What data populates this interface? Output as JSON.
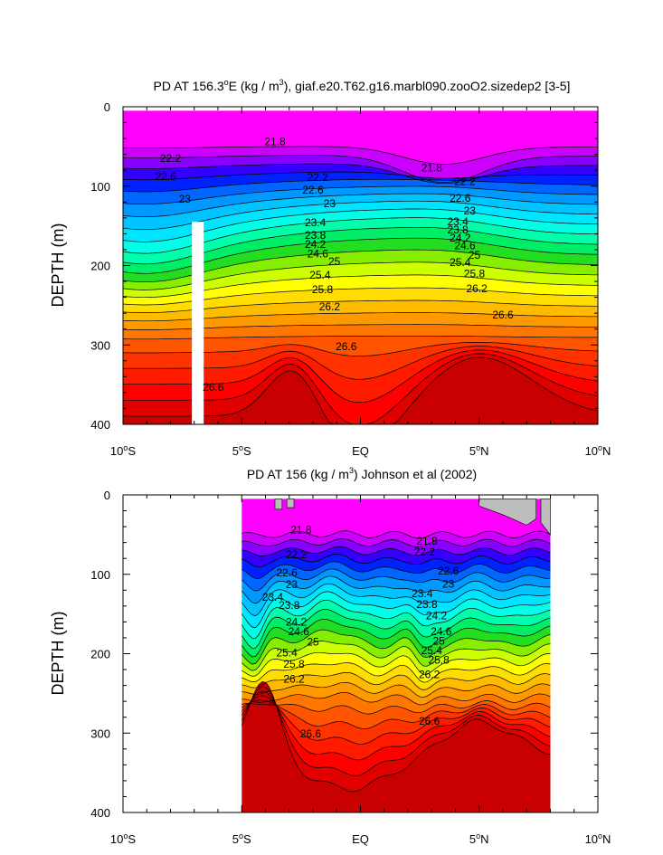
{
  "chart_data": [
    {
      "type": "contour",
      "title_prefix": "PD AT 156.3",
      "title_sup": "o",
      "title_middle": "E (kg / m",
      "title_unit_sup": "3",
      "title_suffix": "), giaf.e20.T62.g16.marbl090.zooO2.sizedep2 [3-5]",
      "ylabel": "DEPTH (m)",
      "xlabel": "",
      "xlim": [
        -10,
        10
      ],
      "ylim": [
        400,
        0
      ],
      "x_ticks": [
        {
          "value": -10,
          "num": "10",
          "deg": "o",
          "hemi": "S"
        },
        {
          "value": -5,
          "num": "5",
          "deg": "o",
          "hemi": "S"
        },
        {
          "value": 0,
          "num": "EQ",
          "deg": "",
          "hemi": ""
        },
        {
          "value": 5,
          "num": "5",
          "deg": "o",
          "hemi": "N"
        },
        {
          "value": 10,
          "num": "10",
          "deg": "o",
          "hemi": "N"
        }
      ],
      "y_ticks": [
        {
          "value": 0,
          "label": "0"
        },
        {
          "value": 100,
          "label": "100"
        },
        {
          "value": 200,
          "label": "200"
        },
        {
          "value": 300,
          "label": "300"
        },
        {
          "value": 400,
          "label": "400"
        }
      ],
      "data_extent": {
        "x": [
          -10,
          10
        ],
        "depth_top": 5
      },
      "missing_columns": [
        {
          "x0": -7.1,
          "x1": -6.6,
          "depth_top": 145
        }
      ],
      "contour_levels": [
        21.8,
        22.2,
        22.6,
        23,
        23.4,
        23.8,
        24.2,
        24.6,
        25,
        25.4,
        25.8,
        26.2,
        26.6
      ],
      "contour_labels": [
        {
          "text": "21.8",
          "x": -3.6,
          "depth": 44
        },
        {
          "text": "21.8",
          "x": 3.0,
          "depth": 77
        },
        {
          "text": "22.2",
          "x": -8.0,
          "depth": 65
        },
        {
          "text": "22.6",
          "x": -8.2,
          "depth": 88
        },
        {
          "text": "23",
          "x": -7.4,
          "depth": 116
        },
        {
          "text": "26.6",
          "x": -6.2,
          "depth": 353
        },
        {
          "text": "22.2",
          "x": -1.8,
          "depth": 89
        },
        {
          "text": "22.6",
          "x": -2.0,
          "depth": 105
        },
        {
          "text": "23",
          "x": -1.3,
          "depth": 122
        },
        {
          "text": "23.4",
          "x": -1.9,
          "depth": 146
        },
        {
          "text": "23.8",
          "x": -1.9,
          "depth": 162
        },
        {
          "text": "24.2",
          "x": -1.9,
          "depth": 173
        },
        {
          "text": "24.6",
          "x": -1.8,
          "depth": 185
        },
        {
          "text": "25",
          "x": -1.1,
          "depth": 195
        },
        {
          "text": "25.4",
          "x": -1.7,
          "depth": 212
        },
        {
          "text": "25.8",
          "x": -1.6,
          "depth": 230
        },
        {
          "text": "26.2",
          "x": -1.3,
          "depth": 252
        },
        {
          "text": "26.6",
          "x": -0.6,
          "depth": 302
        },
        {
          "text": "22.2",
          "x": 4.4,
          "depth": 94
        },
        {
          "text": "22.6",
          "x": 4.2,
          "depth": 115
        },
        {
          "text": "23",
          "x": 4.6,
          "depth": 131
        },
        {
          "text": "23.4",
          "x": 4.1,
          "depth": 145
        },
        {
          "text": "23.8",
          "x": 4.1,
          "depth": 155
        },
        {
          "text": "24.2",
          "x": 4.2,
          "depth": 165
        },
        {
          "text": "24.6",
          "x": 4.4,
          "depth": 175
        },
        {
          "text": "25",
          "x": 4.8,
          "depth": 187
        },
        {
          "text": "25.4",
          "x": 4.2,
          "depth": 196
        },
        {
          "text": "25.8",
          "x": 4.8,
          "depth": 210
        },
        {
          "text": "26.2",
          "x": 4.9,
          "depth": 229
        },
        {
          "text": "26.6",
          "x": 6.0,
          "depth": 262
        }
      ]
    },
    {
      "type": "contour",
      "title_prefix": "PD AT 156 (kg / m",
      "title_sup": "",
      "title_middle": "",
      "title_unit_sup": "3",
      "title_suffix": ") Johnson et al (2002)",
      "ylabel": "DEPTH (m)",
      "xlabel": "",
      "xlim": [
        -10,
        10
      ],
      "ylim": [
        400,
        0
      ],
      "x_ticks": [
        {
          "value": -10,
          "num": "10",
          "deg": "o",
          "hemi": "S"
        },
        {
          "value": -5,
          "num": "5",
          "deg": "o",
          "hemi": "S"
        },
        {
          "value": 0,
          "num": "EQ",
          "deg": "",
          "hemi": ""
        },
        {
          "value": 5,
          "num": "5",
          "deg": "o",
          "hemi": "N"
        },
        {
          "value": 10,
          "num": "10",
          "deg": "o",
          "hemi": "N"
        }
      ],
      "y_ticks": [
        {
          "value": 0,
          "label": "0"
        },
        {
          "value": 100,
          "label": "100"
        },
        {
          "value": 200,
          "label": "200"
        },
        {
          "value": 300,
          "label": "300"
        },
        {
          "value": 400,
          "label": "400"
        }
      ],
      "data_extent": {
        "x": [
          -5,
          8
        ],
        "depth_top": 5
      },
      "missing_columns": [],
      "contour_levels": [
        21.8,
        22.2,
        22.6,
        23,
        23.4,
        23.8,
        24.2,
        24.6,
        25,
        25.4,
        25.8,
        26.2,
        26.6
      ],
      "contour_labels": [
        {
          "text": "21.8",
          "x": -2.5,
          "depth": 44
        },
        {
          "text": "21.8",
          "x": 2.8,
          "depth": 58
        },
        {
          "text": "22.2",
          "x": -2.7,
          "depth": 75
        },
        {
          "text": "22.2",
          "x": 2.7,
          "depth": 72
        },
        {
          "text": "22.6",
          "x": -3.1,
          "depth": 98
        },
        {
          "text": "22.6",
          "x": 3.7,
          "depth": 96
        },
        {
          "text": "23",
          "x": -2.9,
          "depth": 113
        },
        {
          "text": "23",
          "x": 3.7,
          "depth": 112
        },
        {
          "text": "23.4",
          "x": -3.7,
          "depth": 129
        },
        {
          "text": "23.4",
          "x": 2.6,
          "depth": 124
        },
        {
          "text": "23.8",
          "x": -3.0,
          "depth": 139
        },
        {
          "text": "23.8",
          "x": 2.8,
          "depth": 138
        },
        {
          "text": "24.2",
          "x": -2.7,
          "depth": 160
        },
        {
          "text": "24.2",
          "x": 3.2,
          "depth": 152
        },
        {
          "text": "24.6",
          "x": -2.6,
          "depth": 172
        },
        {
          "text": "24.6",
          "x": 3.4,
          "depth": 172
        },
        {
          "text": "25",
          "x": -2.0,
          "depth": 185
        },
        {
          "text": "25",
          "x": 3.3,
          "depth": 184
        },
        {
          "text": "25.4",
          "x": -3.1,
          "depth": 199
        },
        {
          "text": "25.4",
          "x": 3.0,
          "depth": 196
        },
        {
          "text": "25.8",
          "x": -2.8,
          "depth": 213
        },
        {
          "text": "25.8",
          "x": 3.3,
          "depth": 208
        },
        {
          "text": "26.2",
          "x": -2.8,
          "depth": 232
        },
        {
          "text": "26.2",
          "x": 2.9,
          "depth": 226
        },
        {
          "text": "26.6",
          "x": -2.1,
          "depth": 301
        },
        {
          "text": "26.6",
          "x": 2.9,
          "depth": 285
        }
      ]
    }
  ],
  "colors": {
    "density_fill": [
      "#ff00ff",
      "#cc00ff",
      "#8800ff",
      "#3300ff",
      "#0022ff",
      "#0066ff",
      "#0099ff",
      "#00c4ff",
      "#00e5ff",
      "#00ffe6",
      "#00ffaa",
      "#00ee66",
      "#22dd22",
      "#88ee00",
      "#ccff00",
      "#ffff00",
      "#ffdd00",
      "#ffbb00",
      "#ff9900",
      "#ff7700",
      "#ff5500",
      "#ff3300",
      "#ff1a00",
      "#ff0000",
      "#e00000",
      "#c80000"
    ],
    "missing": "#ffffff",
    "land": "#bdbdbd"
  }
}
